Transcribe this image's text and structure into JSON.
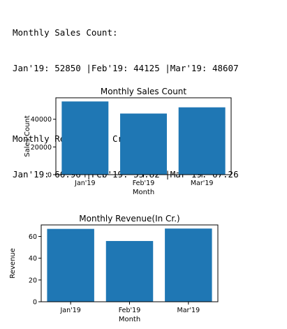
{
  "console": {
    "lines": [
      "Monthly Sales Count:",
      "Jan'19: 52850 |Feb'19: 44125 |Mar'19: 48607",
      "Monthly Revenue(In Cr.):",
      "Jan'19: 66.96 |Feb'19: 55.82 |Mar'19: 67.26"
    ]
  },
  "colors": {
    "bar": "#1f77b4",
    "axis": "#000000"
  },
  "chart_data": [
    {
      "type": "bar",
      "title": "Monthly Sales Count",
      "xlabel": "Month",
      "ylabel": "Sales Count",
      "categories": [
        "Jan'19",
        "Feb'19",
        "Mar'19"
      ],
      "values": [
        52850,
        44125,
        48607
      ],
      "ylim": [
        0,
        55497
      ],
      "yticks": [
        0,
        20000,
        40000
      ],
      "grid": false
    },
    {
      "type": "bar",
      "title": "Monthly Revenue(In Cr.)",
      "xlabel": "Month",
      "ylabel": "Revenue",
      "categories": [
        "Jan'19",
        "Feb'19",
        "Mar'19"
      ],
      "values": [
        66.96,
        55.82,
        67.26
      ],
      "ylim": [
        0,
        70.6
      ],
      "yticks": [
        0,
        20,
        40,
        60
      ],
      "grid": false
    }
  ]
}
